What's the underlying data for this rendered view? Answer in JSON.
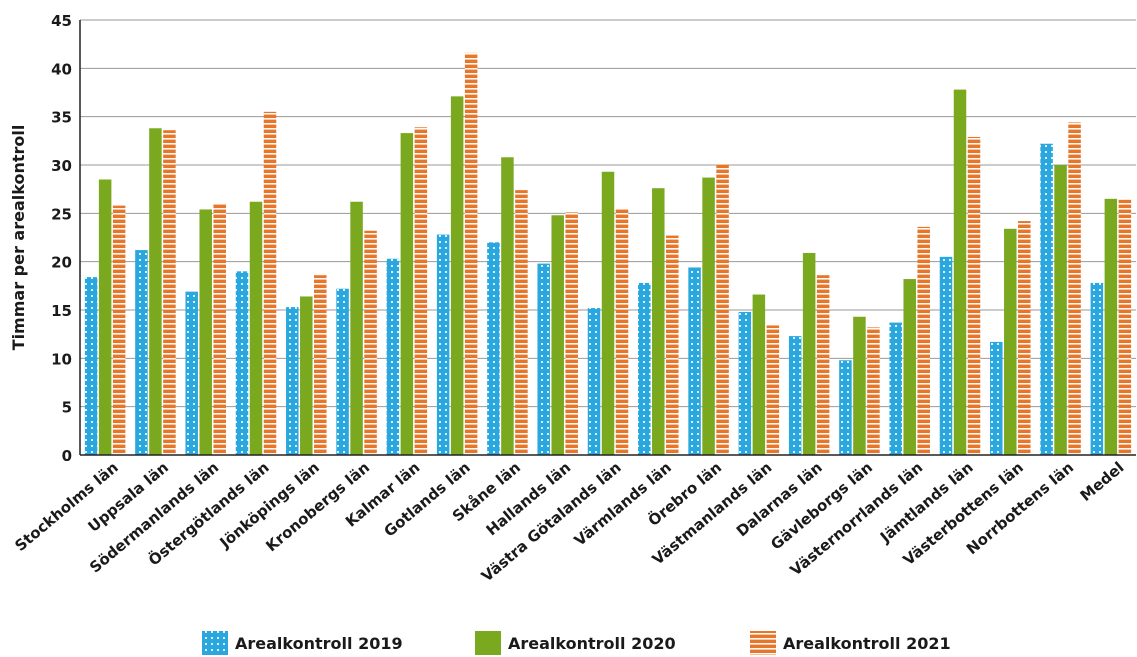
{
  "chart_data": {
    "type": "bar",
    "title": "",
    "xlabel": "",
    "ylabel": "Timmar per arealkontroll",
    "ylim": [
      0,
      45
    ],
    "yticks": [
      0,
      5,
      10,
      15,
      20,
      25,
      30,
      35,
      40,
      45
    ],
    "grid": true,
    "legend_position": "bottom",
    "categories": [
      "Stockholms län",
      "Uppsala län",
      "Södermanlands län",
      "Östergötlands län",
      "Jönköpings län",
      "Kronobergs län",
      "Kalmar län",
      "Gotlands län",
      "Skåne län",
      "Hallands län",
      "Västra Götalands län",
      "Värmlands län",
      "Örebro län",
      "Västmanlands län",
      "Dalarnas län",
      "Gävleborgs län",
      "Västernorrlands län",
      "Jämtlands län",
      "Västerbottens län",
      "Norrbottens län",
      "Medel"
    ],
    "series": [
      {
        "name": "Arealkontroll 2019",
        "color": "#2aa7df",
        "pattern": "dots",
        "values": [
          18.4,
          21.2,
          16.9,
          19.0,
          15.3,
          17.2,
          20.3,
          22.8,
          22.0,
          19.8,
          15.2,
          17.8,
          19.4,
          14.8,
          12.3,
          9.8,
          13.7,
          20.5,
          11.7,
          32.2,
          17.8
        ]
      },
      {
        "name": "Arealkontroll 2020",
        "color": "#7aa91f",
        "pattern": "solid",
        "values": [
          28.5,
          33.8,
          25.4,
          26.2,
          16.4,
          26.2,
          33.3,
          37.1,
          30.8,
          24.8,
          29.3,
          27.6,
          28.7,
          16.6,
          20.9,
          14.3,
          18.2,
          37.8,
          23.4,
          30.0,
          26.5
        ]
      },
      {
        "name": "Arealkontroll 2021",
        "color": "#e6762a",
        "pattern": "stripes",
        "values": [
          25.8,
          33.6,
          26.0,
          35.5,
          18.6,
          23.2,
          33.9,
          41.6,
          27.4,
          25.1,
          25.5,
          22.7,
          30.1,
          13.4,
          18.6,
          13.2,
          23.6,
          32.9,
          24.2,
          34.4,
          26.4
        ]
      }
    ]
  }
}
